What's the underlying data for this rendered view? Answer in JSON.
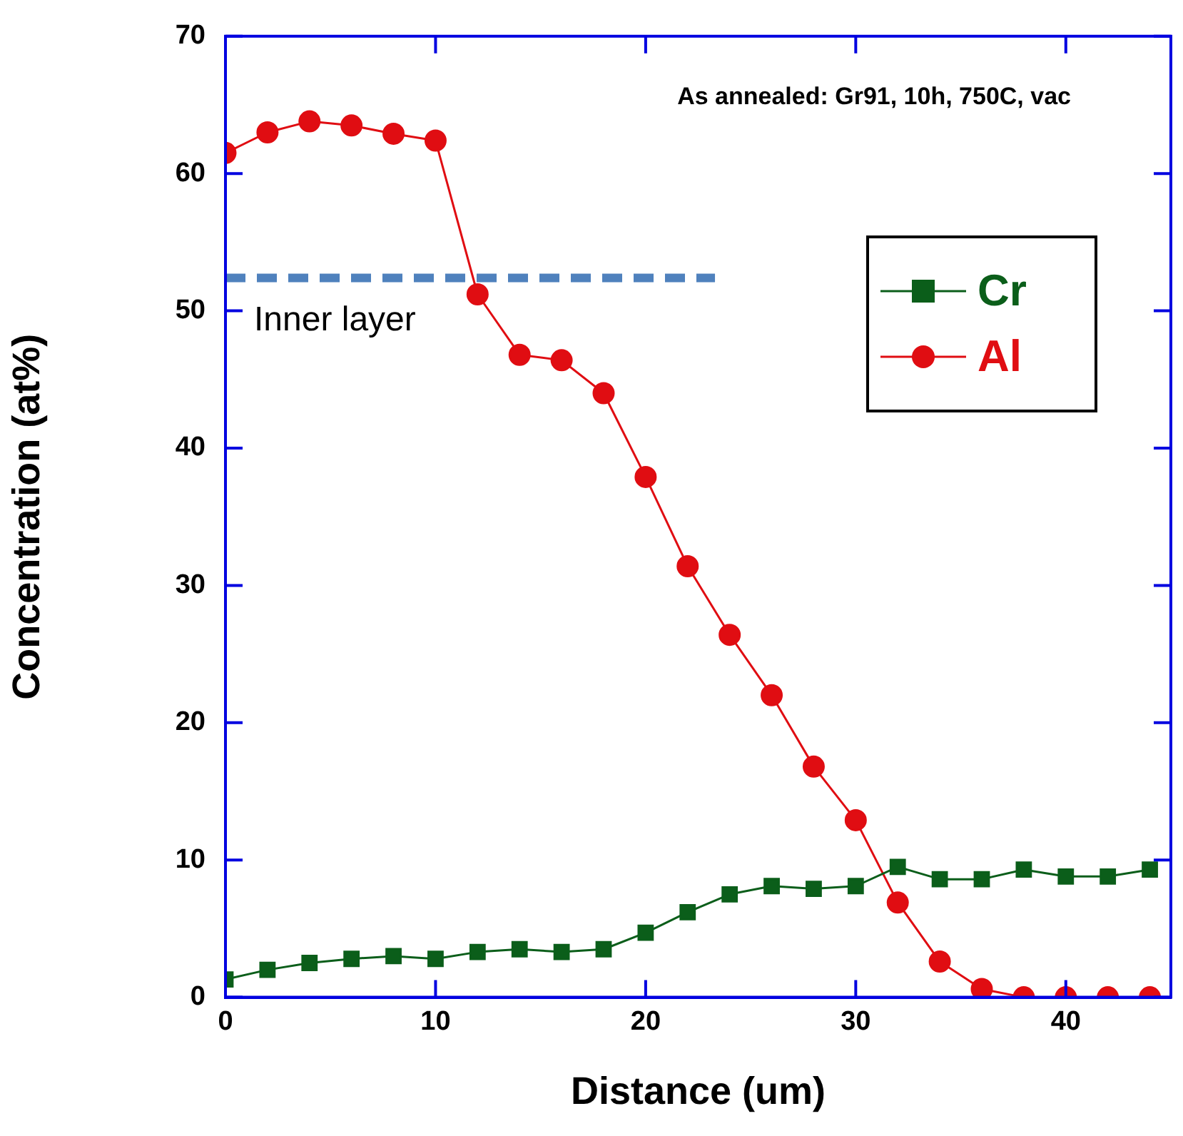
{
  "chart_data": {
    "type": "line",
    "xlabel": "Distance (um)",
    "ylabel": "Concentration (at%)",
    "xlim": [
      0,
      45
    ],
    "xticks": [
      0,
      10,
      20,
      30,
      40
    ],
    "ylim": [
      0,
      70
    ],
    "yticks": [
      0,
      10,
      20,
      30,
      40,
      50,
      60,
      70
    ],
    "grid": false,
    "legend": "right",
    "line_style": "solid",
    "annotations": [
      "As annealed: Gr91, 10h, 750C, vac",
      {
        "text": "Inner layer",
        "x": 0,
        "y": 52.4
      }
    ],
    "series": [
      {
        "name": "Cr",
        "color": "#0b5e1a",
        "marker": "square",
        "x": [
          0,
          2,
          4,
          6,
          8,
          10,
          12,
          14,
          16,
          18,
          20,
          22,
          24,
          26,
          28,
          30,
          32,
          34,
          36,
          38,
          40,
          42,
          44
        ],
        "values": [
          1.3,
          2.0,
          2.5,
          2.8,
          3.0,
          2.8,
          3.3,
          3.5,
          3.3,
          3.5,
          4.7,
          6.2,
          7.5,
          8.1,
          7.9,
          8.1,
          9.5,
          8.6,
          8.6,
          9.3,
          8.8,
          8.8,
          9.3
        ]
      },
      {
        "name": "Al",
        "color": "#e00d12",
        "marker": "circle",
        "x": [
          0,
          2,
          4,
          6,
          8,
          10,
          12,
          14,
          16,
          18,
          20,
          22,
          24,
          26,
          28,
          30,
          32,
          34,
          36,
          38,
          40,
          42,
          44
        ],
        "values": [
          61.5,
          63.0,
          63.8,
          63.5,
          62.9,
          62.4,
          51.2,
          46.8,
          46.4,
          44.0,
          37.9,
          31.4,
          26.4,
          22.0,
          16.8,
          12.9,
          6.9,
          2.6,
          0.6,
          0,
          0,
          0,
          0
        ]
      },
      {
        "color": "#4f81bd",
        "marker": "none",
        "line_style": "dashed",
        "x": [
          0,
          23.3
        ],
        "values": [
          52.4,
          52.4
        ]
      }
    ]
  }
}
